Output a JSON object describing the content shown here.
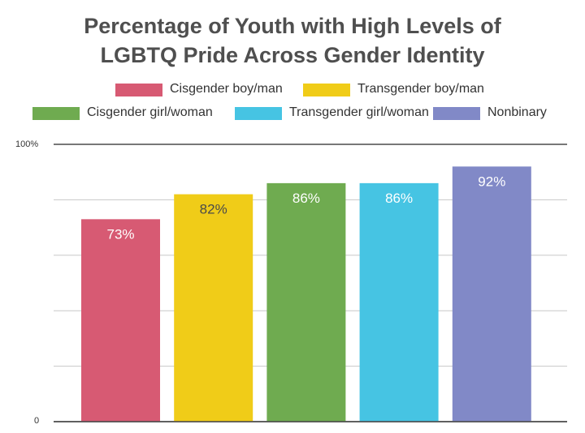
{
  "chart_data": {
    "type": "bar",
    "title_lines": [
      "Percentage of Youth with High Levels of",
      "LGBTQ Pride Across Gender Identity"
    ],
    "categories": [
      "Cisgender boy/man",
      "Transgender boy/man",
      "Cisgender girl/woman",
      "Transgender girl/woman",
      "Nonbinary"
    ],
    "values": [
      73,
      82,
      86,
      86,
      92
    ],
    "data_labels": [
      "73%",
      "82%",
      "86%",
      "86%",
      "92%"
    ],
    "colors": [
      "#d75a73",
      "#f0cc18",
      "#6fab50",
      "#46c4e3",
      "#8189c7"
    ],
    "label_colors": [
      "#ffffff",
      "#4a4a4a",
      "#ffffff",
      "#ffffff",
      "#ffffff"
    ],
    "ylim": [
      0,
      100
    ],
    "ytick_labels": [
      "0",
      "100%"
    ],
    "gridlines": [
      0,
      20,
      40,
      60,
      80,
      100
    ],
    "legend_position": "top-center",
    "xlabel": "",
    "ylabel": ""
  }
}
